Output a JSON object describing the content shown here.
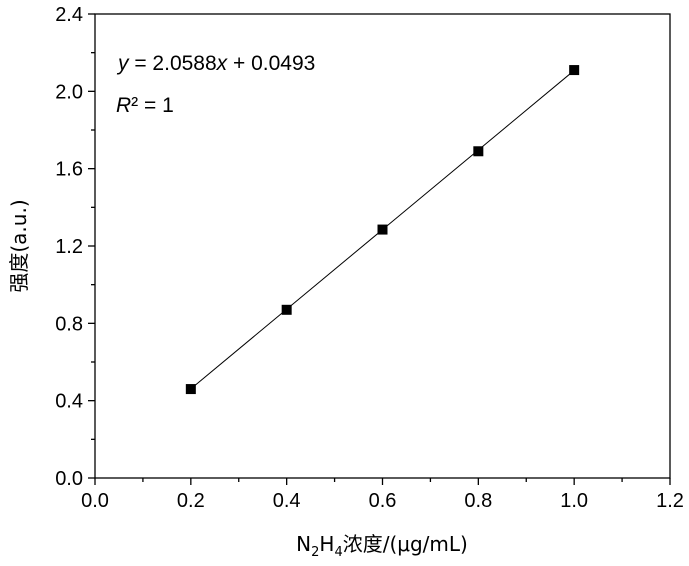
{
  "chart_data": {
    "type": "scatter",
    "x": [
      0.2,
      0.4,
      0.6,
      0.8,
      1.0
    ],
    "y": [
      0.46,
      0.87,
      1.285,
      1.69,
      2.11
    ],
    "fit_line": {
      "slope": 2.0588,
      "intercept": 0.0493
    },
    "xlim": [
      0.0,
      1.2
    ],
    "ylim": [
      0.0,
      2.4
    ],
    "xticks": [
      "0.0",
      "0.2",
      "0.4",
      "0.6",
      "0.8",
      "1.0",
      "1.2"
    ],
    "yticks": [
      "0.0",
      "0.4",
      "0.8",
      "1.2",
      "1.6",
      "2.0",
      "2.4"
    ],
    "xlabel": {
      "base": "N",
      "sub1": "2",
      "mid": "H",
      "sub2": "4",
      "rest": "浓度/(μg/mL)"
    },
    "ylabel": "强度(a.u.)",
    "equation": {
      "y": "y",
      "eq_mid": " = 2.0588",
      "x": "x",
      "eq_end": " +  0.0493"
    },
    "r2": {
      "R": "R",
      "rest": "² = 1"
    },
    "grid": false,
    "marker": "square",
    "colors": {
      "marker": "#000000",
      "line": "#000000",
      "axes": "#000000"
    }
  }
}
